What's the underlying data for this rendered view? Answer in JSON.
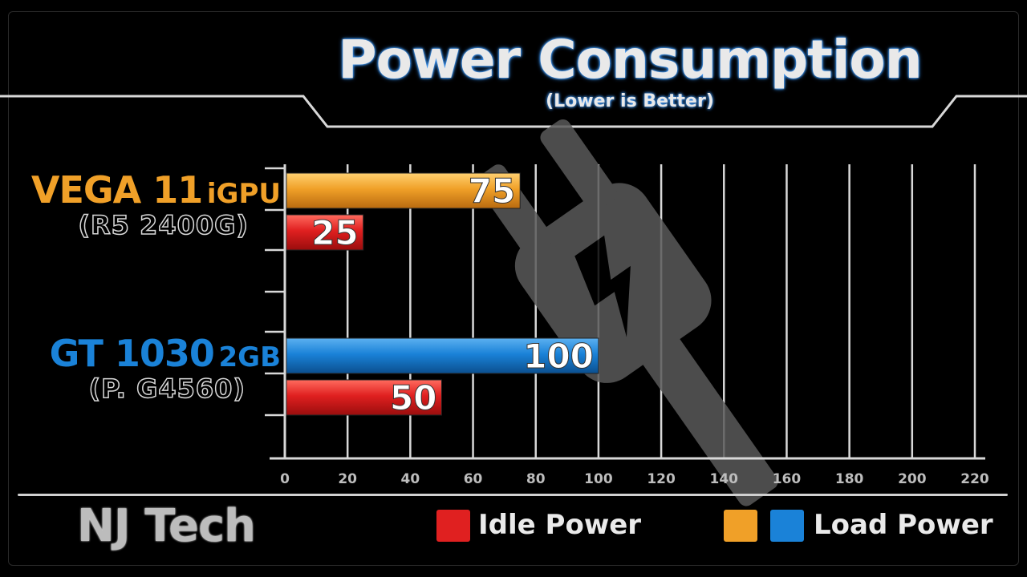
{
  "header": {
    "title": "Power Consumption",
    "subtitle": "(Lower is Better)"
  },
  "categories": [
    {
      "name": "VEGA 11",
      "suffix": "iGPU",
      "sub": "(R5 2400G)",
      "color": "#f0a028"
    },
    {
      "name": "GT 1030",
      "suffix": "2GB",
      "sub": "(P. G4560)",
      "color": "#1a82d8"
    }
  ],
  "chart_data": {
    "type": "bar",
    "orientation": "horizontal",
    "title": "Power Consumption",
    "subtitle": "(Lower is Better)",
    "categories": [
      "VEGA 11 iGPU (R5 2400G)",
      "GT 1030 2GB (P. G4560)"
    ],
    "series": [
      {
        "name": "Load Power",
        "values": [
          75,
          100
        ],
        "colors": [
          "#f0a028",
          "#1a82d8"
        ]
      },
      {
        "name": "Idle Power",
        "values": [
          25,
          50
        ],
        "colors": [
          "#e02020",
          "#e02020"
        ]
      }
    ],
    "xlim": [
      0,
      220
    ],
    "xticks": [
      "0",
      "20",
      "40",
      "60",
      "80",
      "100",
      "120",
      "140",
      "160",
      "180",
      "200",
      "220"
    ],
    "grid": true,
    "legend": "bottom"
  },
  "legend": {
    "idle_label": "Idle Power",
    "load_label": "Load Power",
    "idle_color": "#e02020",
    "load_colors": [
      "#f0a028",
      "#1a82d8"
    ]
  },
  "footer": {
    "brand": "NJ Tech"
  },
  "background_icon": "power-plug-icon"
}
